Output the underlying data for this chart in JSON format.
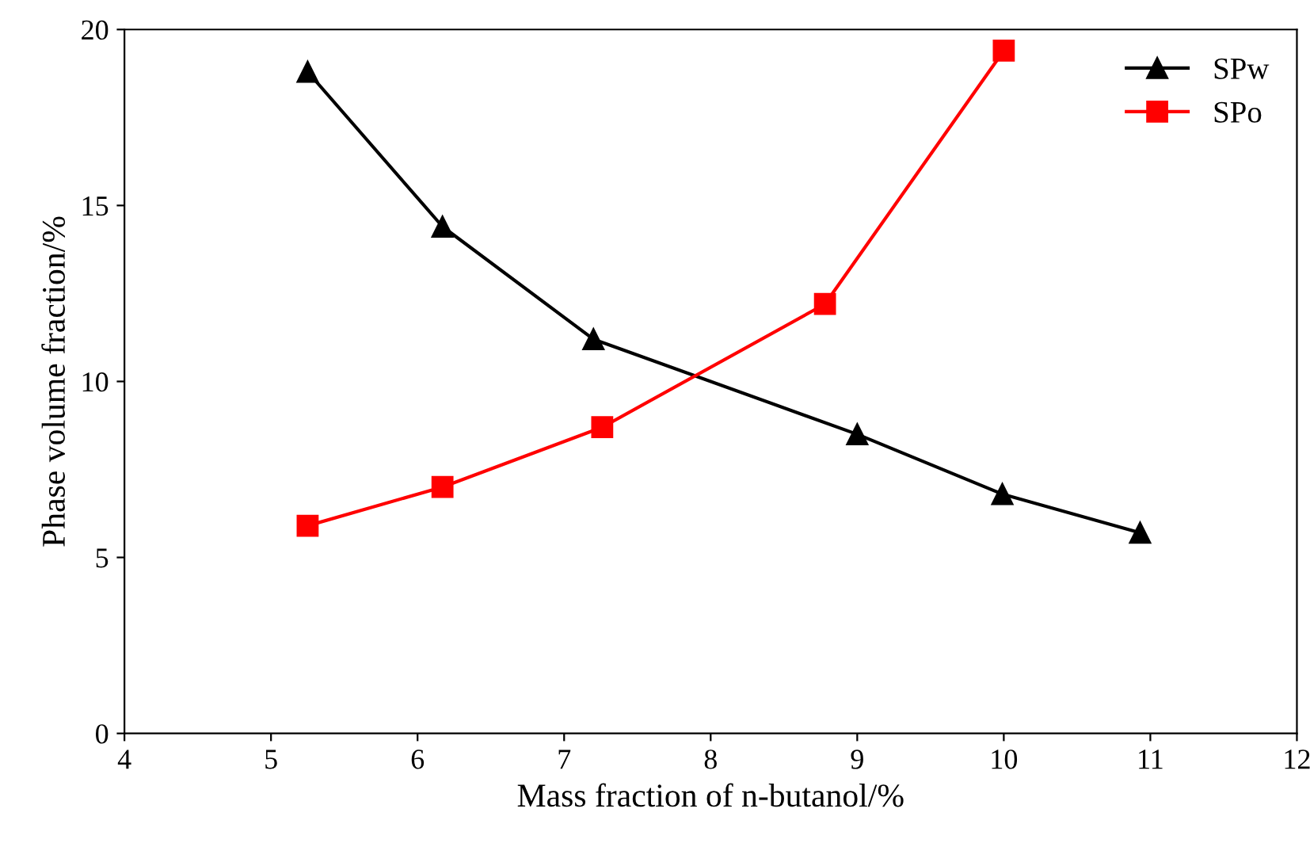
{
  "chart_data": {
    "type": "line",
    "xlabel": "Mass fraction of n-butanol/%",
    "ylabel": "Phase volume fraction/%",
    "xlim": [
      4,
      12
    ],
    "xticks": [
      4,
      5,
      6,
      7,
      8,
      9,
      10,
      11,
      12
    ],
    "ylim": [
      0,
      20
    ],
    "yticks": [
      0,
      5,
      10,
      15,
      20
    ],
    "grid": false,
    "legend": "top right",
    "series": [
      {
        "name": "SPw",
        "color": "#000000",
        "marker": "triangle",
        "x": [
          5.25,
          6.17,
          7.2,
          9.0,
          9.99,
          10.93
        ],
        "values": [
          18.8,
          14.4,
          11.2,
          8.5,
          6.8,
          5.7
        ]
      },
      {
        "name": "SPo",
        "color": "#ff0000",
        "marker": "square",
        "x": [
          5.25,
          6.17,
          7.26,
          8.78,
          10.0
        ],
        "values": [
          5.9,
          7.0,
          8.7,
          12.2,
          19.4
        ]
      }
    ]
  }
}
